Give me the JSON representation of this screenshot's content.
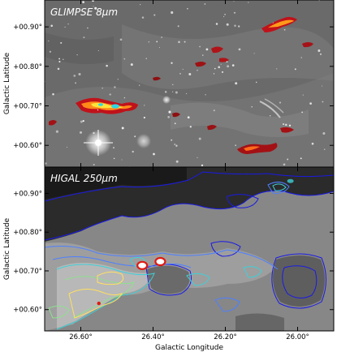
{
  "chart_data": [
    {
      "type": "heatmap",
      "title": "GLIMPSE 8μm",
      "ylabel": "Galactic Latitude",
      "xlabel": "",
      "yticks": [
        "+00.90°",
        "+00.80°",
        "+00.70°",
        "+00.60°"
      ],
      "ytick_values": [
        0.9,
        0.8,
        0.7,
        0.6
      ],
      "xlim": [
        26.7,
        25.9
      ],
      "ylim": [
        0.545,
        0.968
      ],
      "colormap": "greyscale with red/yellow/cyan overlay",
      "colors": {
        "background": "#6a6a6a",
        "hot": "#ff3a00",
        "warm": "#ffd21e",
        "cold": "#22c8e8"
      },
      "emission_features": [
        {
          "label": "",
          "l": 26.53,
          "b": 0.703,
          "intensity": "high"
        },
        {
          "label": "",
          "l": 26.48,
          "b": 0.698,
          "intensity": "high"
        },
        {
          "label": "",
          "l": 26.02,
          "b": 0.935,
          "intensity": "medium"
        },
        {
          "label": "",
          "l": 26.22,
          "b": 0.865,
          "intensity": "low"
        },
        {
          "label": "",
          "l": 26.3,
          "b": 0.6,
          "intensity": "low"
        }
      ]
    },
    {
      "type": "heatmap",
      "title": "HIGAL 250μm",
      "ylabel": "Galactic Latitude",
      "xlabel": "Galactic Longitude",
      "xticks": [
        "26.60°",
        "26.40°",
        "26.20°",
        "26.00°"
      ],
      "xtick_values": [
        26.6,
        26.4,
        26.2,
        26.0
      ],
      "yticks": [
        "+00.90°",
        "+00.80°",
        "+00.70°",
        "+00.60°"
      ],
      "ytick_values": [
        0.9,
        0.8,
        0.7,
        0.6
      ],
      "xlim": [
        26.7,
        25.9
      ],
      "ylim": [
        0.545,
        0.968
      ],
      "colormap": "greyscale with contour lines",
      "contour_colors": [
        "#1a1ae6",
        "#4d7fff",
        "#3fd0d8",
        "#8fe08f",
        "#ffe060",
        "#ff2a1a"
      ],
      "emission_peaks": [
        {
          "l": 26.43,
          "b": 0.714,
          "level": "peak"
        },
        {
          "l": 26.38,
          "b": 0.724,
          "level": "peak"
        },
        {
          "l": 26.55,
          "b": 0.616,
          "level": "high"
        },
        {
          "l": 26.02,
          "b": 0.932,
          "level": "medium"
        }
      ]
    }
  ]
}
